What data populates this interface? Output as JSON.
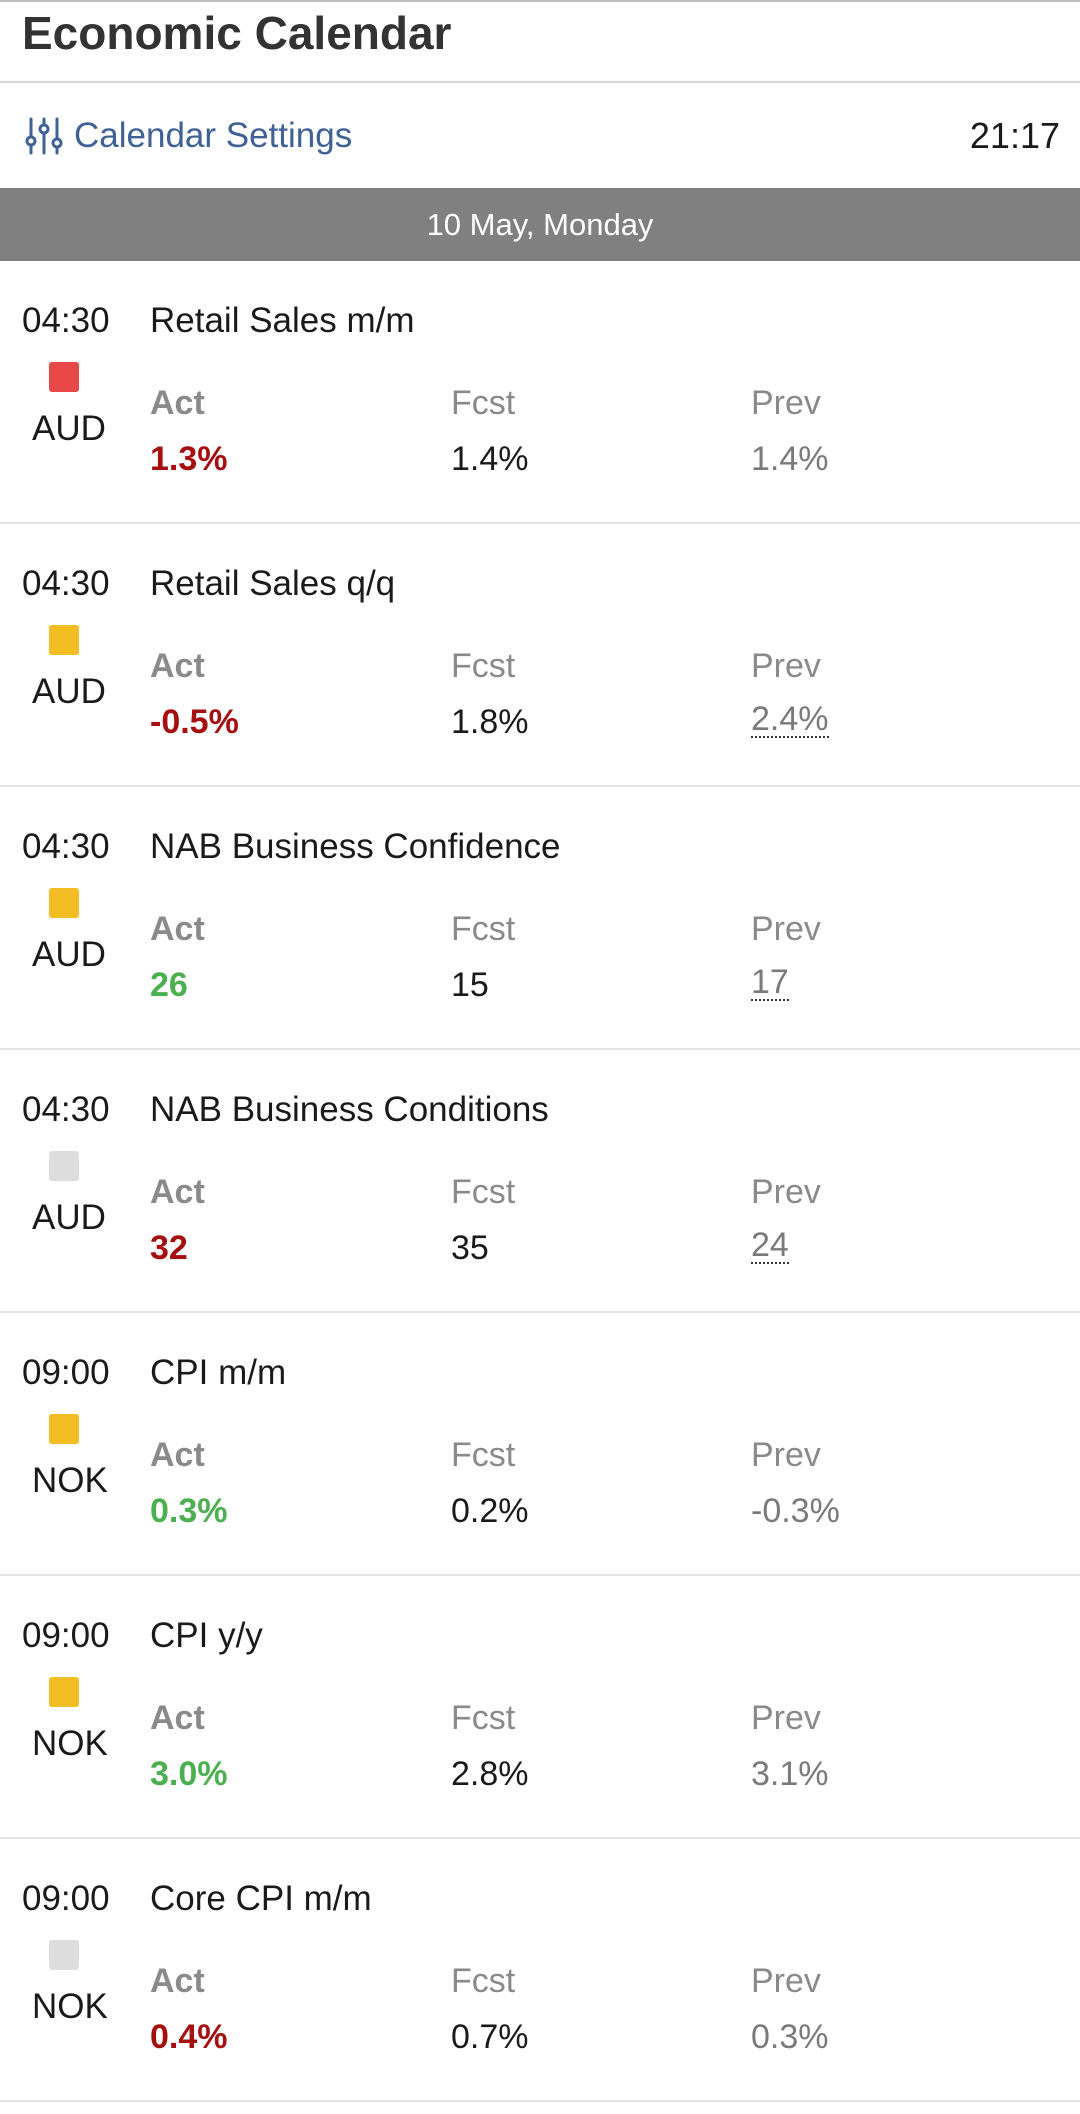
{
  "header": {
    "title": "Economic Calendar"
  },
  "settings": {
    "label": "Calendar Settings",
    "icon": "sliders-icon",
    "time": "21:17"
  },
  "date_bar": {
    "label": "10 May, Monday"
  },
  "colors": {
    "accent": "#3f6195",
    "negative": "#a50f0f",
    "positive": "#4caf50",
    "impact_high": "#e84848",
    "impact_medium": "#f3be23",
    "impact_low": "#dddddd"
  },
  "columns": {
    "act": "Act",
    "fcst": "Fcst",
    "prev": "Prev"
  },
  "events": [
    {
      "time": "04:30",
      "currency": "AUD",
      "impact": "high",
      "name": "Retail Sales m/m",
      "actual": "1.3%",
      "actual_trend": "negative",
      "forecast": "1.4%",
      "previous": "1.4%",
      "previous_revised": false
    },
    {
      "time": "04:30",
      "currency": "AUD",
      "impact": "medium",
      "name": "Retail Sales q/q",
      "actual": "-0.5%",
      "actual_trend": "negative",
      "forecast": "1.8%",
      "previous": "2.4%",
      "previous_revised": true
    },
    {
      "time": "04:30",
      "currency": "AUD",
      "impact": "medium",
      "name": "NAB Business Confidence",
      "actual": "26",
      "actual_trend": "positive",
      "forecast": "15",
      "previous": "17",
      "previous_revised": true
    },
    {
      "time": "04:30",
      "currency": "AUD",
      "impact": "low",
      "name": "NAB Business Conditions",
      "actual": "32",
      "actual_trend": "negative",
      "forecast": "35",
      "previous": "24",
      "previous_revised": true
    },
    {
      "time": "09:00",
      "currency": "NOK",
      "impact": "medium",
      "name": "CPI m/m",
      "actual": "0.3%",
      "actual_trend": "positive",
      "forecast": "0.2%",
      "previous": "-0.3%",
      "previous_revised": false
    },
    {
      "time": "09:00",
      "currency": "NOK",
      "impact": "medium",
      "name": "CPI y/y",
      "actual": "3.0%",
      "actual_trend": "positive",
      "forecast": "2.8%",
      "previous": "3.1%",
      "previous_revised": false
    },
    {
      "time": "09:00",
      "currency": "NOK",
      "impact": "low",
      "name": "Core CPI m/m",
      "actual": "0.4%",
      "actual_trend": "negative",
      "forecast": "0.7%",
      "previous": "0.3%",
      "previous_revised": false
    }
  ]
}
